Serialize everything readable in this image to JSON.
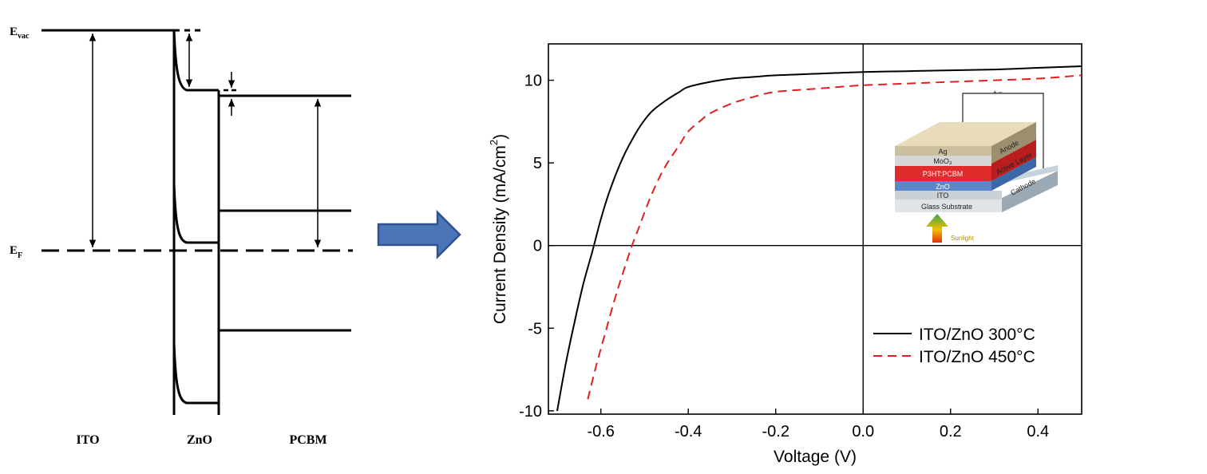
{
  "band_diagram": {
    "evac_main": "E",
    "evac_sub": "vac",
    "ef_main": "E",
    "ef_sub": "F",
    "layers": [
      "ITO",
      "ZnO",
      "PCBM"
    ]
  },
  "colors": {
    "arrow_fill": "#4a76b8",
    "arrow_stroke": "#2f528f",
    "series_300": "#000000",
    "series_450": "#e02020"
  },
  "chart_data": {
    "type": "line",
    "xlabel": "Voltage (V)",
    "ylabel_main": "Current Density (mA/cm",
    "ylabel_sup": "2",
    "ylabel_close": ")",
    "xlim": [
      -0.72,
      0.5
    ],
    "ylim": [
      -10.2,
      12.2
    ],
    "xticks": [
      -0.6,
      -0.4,
      -0.2,
      0.0,
      0.2,
      0.4
    ],
    "xtick_labels": [
      "-0.6",
      "-0.4",
      "-0.2",
      "0.0",
      "0.2",
      "0.4"
    ],
    "yticks": [
      -10,
      -5,
      0,
      5,
      10
    ],
    "ytick_labels": [
      "-10",
      "-5",
      "0",
      "5",
      "10"
    ],
    "legend_position": "bottom-right",
    "series": [
      {
        "name": "ITO/ZnO 300°C",
        "style": "solid",
        "x": [
          -0.7,
          -0.68,
          -0.66,
          -0.64,
          -0.62,
          -0.6,
          -0.58,
          -0.55,
          -0.52,
          -0.5,
          -0.48,
          -0.45,
          -0.42,
          -0.4,
          -0.35,
          -0.3,
          -0.25,
          -0.2,
          -0.1,
          0.0,
          0.1,
          0.2,
          0.3,
          0.4,
          0.5
        ],
        "y": [
          -10.0,
          -7.1,
          -4.6,
          -2.3,
          -0.4,
          1.6,
          3.3,
          5.3,
          6.8,
          7.6,
          8.2,
          8.8,
          9.3,
          9.6,
          9.9,
          10.1,
          10.2,
          10.3,
          10.4,
          10.5,
          10.55,
          10.6,
          10.65,
          10.75,
          10.85
        ]
      },
      {
        "name": "ITO/ZnO 450°C",
        "style": "dashed",
        "x": [
          -0.63,
          -0.61,
          -0.59,
          -0.57,
          -0.55,
          -0.53,
          -0.51,
          -0.49,
          -0.47,
          -0.45,
          -0.42,
          -0.4,
          -0.37,
          -0.35,
          -0.3,
          -0.25,
          -0.2,
          -0.1,
          0.0,
          0.1,
          0.2,
          0.3,
          0.4,
          0.5
        ],
        "y": [
          -9.3,
          -7.2,
          -5.3,
          -3.4,
          -1.7,
          -0.1,
          1.3,
          2.7,
          3.9,
          4.9,
          6.1,
          6.9,
          7.6,
          8.0,
          8.6,
          9.0,
          9.3,
          9.5,
          9.7,
          9.8,
          9.9,
          10.0,
          10.1,
          10.3
        ]
      }
    ]
  },
  "inset": {
    "layers": [
      "Ag",
      "MoO₃",
      "P3HT:PCBM",
      "ZnO",
      "ITO",
      "Glass Substrate"
    ],
    "side_labels": [
      "Anode",
      "Active Layer",
      "Cathode"
    ],
    "polarity": "+ –",
    "sunlight_label": "Sunlight"
  }
}
